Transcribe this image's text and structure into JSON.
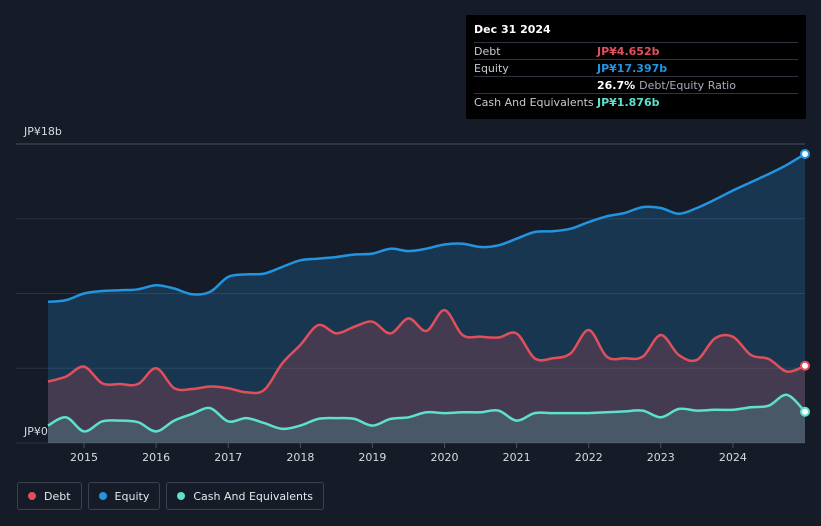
{
  "tooltip": {
    "date": "Dec 31 2024",
    "debt_label": "Debt",
    "debt_value": "JP¥4.652b",
    "equity_label": "Equity",
    "equity_value": "JP¥17.397b",
    "ratio_value": "26.7%",
    "ratio_label": "Debt/Equity Ratio",
    "cash_label": "Cash And Equivalents",
    "cash_value": "JP¥1.876b"
  },
  "legend": [
    {
      "label": "Debt",
      "color": "#e24f5c"
    },
    {
      "label": "Equity",
      "color": "#2394df"
    },
    {
      "label": "Cash And Equivalents",
      "color": "#5de0cc"
    }
  ],
  "chart_data": {
    "type": "area",
    "y_top_label": "JP¥18b",
    "y_bottom_label": "JP¥0",
    "ylim": [
      0,
      18
    ],
    "xlim": [
      2014.5,
      2025.0
    ],
    "x_ticks": [
      "2015",
      "2016",
      "2017",
      "2018",
      "2019",
      "2020",
      "2021",
      "2022",
      "2023",
      "2024"
    ],
    "x_tick_values": [
      2015,
      2016,
      2017,
      2018,
      2019,
      2020,
      2021,
      2022,
      2023,
      2024
    ],
    "grid": true,
    "series": [
      {
        "name": "Equity",
        "color": "#2394df",
        "x": [
          2014.5,
          2014.75,
          2015.0,
          2015.25,
          2015.5,
          2015.75,
          2016.0,
          2016.25,
          2016.5,
          2016.75,
          2017.0,
          2017.25,
          2017.5,
          2017.75,
          2018.0,
          2018.25,
          2018.5,
          2018.75,
          2019.0,
          2019.25,
          2019.5,
          2019.75,
          2020.0,
          2020.25,
          2020.5,
          2020.75,
          2021.0,
          2021.25,
          2021.5,
          2021.75,
          2022.0,
          2022.25,
          2022.5,
          2022.75,
          2023.0,
          2023.25,
          2023.5,
          2023.75,
          2024.0,
          2024.25,
          2024.5,
          2024.75,
          2025.0
        ],
        "values": [
          8.5,
          8.6,
          9.0,
          9.15,
          9.2,
          9.25,
          9.5,
          9.3,
          8.95,
          9.1,
          10.0,
          10.15,
          10.2,
          10.6,
          11.0,
          11.1,
          11.2,
          11.35,
          11.4,
          11.7,
          11.55,
          11.7,
          11.95,
          12.0,
          11.8,
          11.9,
          12.3,
          12.7,
          12.75,
          12.9,
          13.3,
          13.65,
          13.85,
          14.2,
          14.15,
          13.8,
          14.15,
          14.65,
          15.2,
          15.7,
          16.2,
          16.75,
          17.4
        ]
      },
      {
        "name": "Debt",
        "color": "#e24f5c",
        "x": [
          2014.5,
          2014.75,
          2015.0,
          2015.25,
          2015.5,
          2015.75,
          2016.0,
          2016.25,
          2016.5,
          2016.75,
          2017.0,
          2017.25,
          2017.5,
          2017.75,
          2018.0,
          2018.25,
          2018.5,
          2018.75,
          2019.0,
          2019.25,
          2019.5,
          2019.75,
          2020.0,
          2020.25,
          2020.5,
          2020.75,
          2021.0,
          2021.25,
          2021.5,
          2021.75,
          2022.0,
          2022.25,
          2022.5,
          2022.75,
          2023.0,
          2023.25,
          2023.5,
          2023.75,
          2024.0,
          2024.25,
          2024.5,
          2024.75,
          2025.0
        ],
        "values": [
          3.7,
          4.0,
          4.6,
          3.6,
          3.55,
          3.55,
          4.5,
          3.3,
          3.25,
          3.4,
          3.3,
          3.05,
          3.2,
          4.8,
          5.9,
          7.1,
          6.6,
          7.0,
          7.3,
          6.6,
          7.5,
          6.75,
          8.0,
          6.5,
          6.4,
          6.35,
          6.6,
          5.1,
          5.1,
          5.4,
          6.8,
          5.2,
          5.1,
          5.2,
          6.5,
          5.3,
          5.0,
          6.3,
          6.4,
          5.3,
          5.05,
          4.3,
          4.65
        ]
      },
      {
        "name": "Cash And Equivalents",
        "color": "#5de0cc",
        "x": [
          2014.5,
          2014.75,
          2015.0,
          2015.25,
          2015.5,
          2015.75,
          2016.0,
          2016.25,
          2016.5,
          2016.75,
          2017.0,
          2017.25,
          2017.5,
          2017.75,
          2018.0,
          2018.25,
          2018.5,
          2018.75,
          2019.0,
          2019.25,
          2019.5,
          2019.75,
          2020.0,
          2020.25,
          2020.5,
          2020.75,
          2021.0,
          2021.25,
          2021.5,
          2021.75,
          2022.0,
          2022.25,
          2022.5,
          2022.75,
          2023.0,
          2023.25,
          2023.5,
          2023.75,
          2024.0,
          2024.25,
          2024.5,
          2024.75,
          2025.0
        ],
        "values": [
          1.05,
          1.55,
          0.7,
          1.3,
          1.35,
          1.25,
          0.7,
          1.35,
          1.75,
          2.1,
          1.3,
          1.5,
          1.2,
          0.85,
          1.05,
          1.45,
          1.5,
          1.45,
          1.05,
          1.45,
          1.55,
          1.85,
          1.8,
          1.85,
          1.85,
          1.95,
          1.35,
          1.8,
          1.8,
          1.8,
          1.8,
          1.85,
          1.9,
          1.95,
          1.55,
          2.05,
          1.95,
          2.0,
          2.0,
          2.15,
          2.25,
          2.9,
          1.88
        ]
      }
    ]
  }
}
